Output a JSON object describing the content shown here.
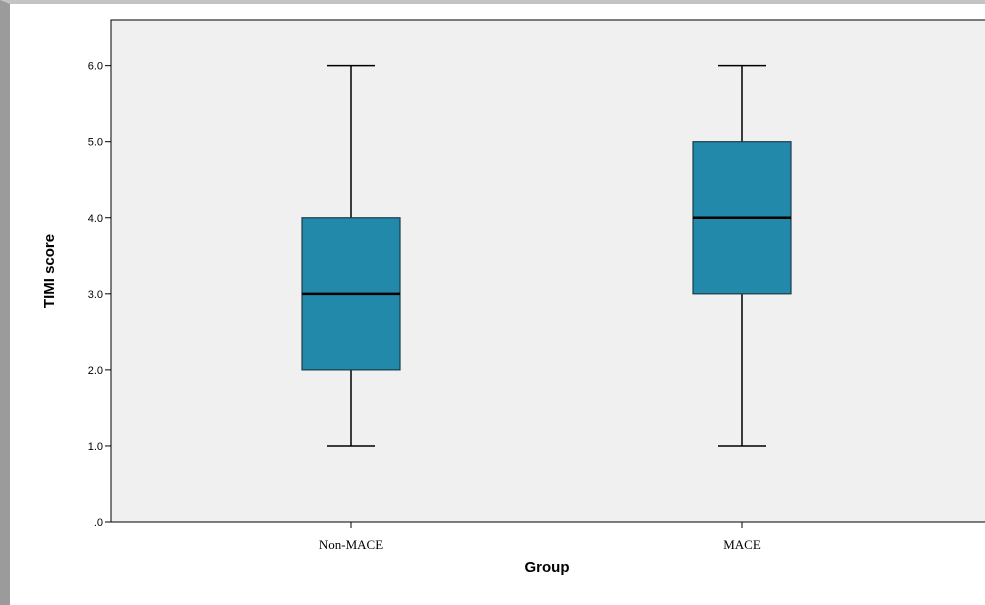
{
  "chart_data": {
    "type": "boxplot",
    "xlabel": "Group",
    "ylabel": "TIMI score",
    "ylim": [
      0,
      6.6
    ],
    "y_ticks": [
      0,
      1,
      2,
      3,
      4,
      5,
      6
    ],
    "y_tick_labels": [
      ".0",
      "1.0",
      "2.0",
      "3.0",
      "4.0",
      "5.0",
      "6.0"
    ],
    "grid": false,
    "categories": [
      "Non-MACE",
      "MACE"
    ],
    "boxes": [
      {
        "category": "Non-MACE",
        "min": 1,
        "q1": 2,
        "median": 3,
        "q3": 4,
        "max": 6
      },
      {
        "category": "MACE",
        "min": 1,
        "q1": 3,
        "median": 4,
        "q3": 5,
        "max": 6
      }
    ],
    "colors": {
      "box_fill": "#2389aa",
      "plot_background": "#f0f0f0",
      "line": "#000000"
    }
  }
}
